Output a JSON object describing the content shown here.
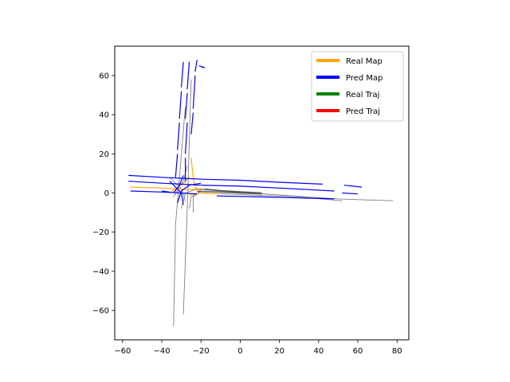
{
  "chart_data": {
    "type": "line",
    "title": "",
    "xlabel": "",
    "ylabel": "",
    "xlim": [
      -64,
      86
    ],
    "ylim": [
      -75,
      75
    ],
    "x_ticks": [
      -60,
      -40,
      -20,
      0,
      20,
      40,
      60,
      80
    ],
    "y_ticks": [
      -60,
      -40,
      -20,
      0,
      20,
      40,
      60
    ],
    "grid": false,
    "legend_position": "top-right",
    "legend": [
      {
        "label": "Real Map",
        "color": "#ffa500"
      },
      {
        "label": "Pred Map",
        "color": "#0000ff"
      },
      {
        "label": "Real Traj",
        "color": "#008000"
      },
      {
        "label": "Pred Traj",
        "color": "#ff0000"
      }
    ],
    "series": [
      {
        "kind": "gray",
        "color": "#808080",
        "points": [
          [
            -28,
            44
          ],
          [
            -33,
            -16
          ]
        ]
      },
      {
        "kind": "gray",
        "color": "#808080",
        "points": [
          [
            -33,
            -16
          ],
          [
            -34,
            -68
          ]
        ]
      },
      {
        "kind": "gray",
        "color": "#808080",
        "points": [
          [
            -25,
            58
          ],
          [
            -27,
            -8
          ]
        ]
      },
      {
        "kind": "gray",
        "color": "#808080",
        "points": [
          [
            -27,
            -8
          ],
          [
            -29,
            -62
          ]
        ]
      },
      {
        "kind": "gray",
        "color": "#808080",
        "points": [
          [
            -20,
            64
          ],
          [
            -18,
            64
          ]
        ]
      },
      {
        "kind": "gray",
        "color": "#808080",
        "points": [
          [
            -24,
            2
          ],
          [
            20,
            -1
          ],
          [
            50,
            -3
          ],
          [
            78,
            -4
          ]
        ]
      },
      {
        "kind": "gray",
        "color": "#808080",
        "points": [
          [
            -20,
            0
          ],
          [
            30,
            -2
          ],
          [
            52,
            -4
          ]
        ]
      },
      {
        "kind": "gray",
        "color": "#808080",
        "points": [
          [
            -36,
            8
          ],
          [
            -30,
            2
          ],
          [
            -28,
            -4
          ]
        ]
      },
      {
        "kind": "gray",
        "color": "#808080",
        "points": [
          [
            -34,
            -2
          ],
          [
            -29,
            6
          ],
          [
            -27,
            14
          ]
        ]
      },
      {
        "kind": "gray",
        "color": "#808080",
        "points": [
          [
            -30,
            -8
          ],
          [
            -28,
            0
          ],
          [
            -22,
            2
          ],
          [
            -18,
            2
          ]
        ]
      },
      {
        "kind": "gray",
        "color": "#808080",
        "points": [
          [
            -26,
            -8
          ],
          [
            -25,
            -2
          ],
          [
            -22,
            0
          ]
        ]
      },
      {
        "kind": "gray",
        "color": "#808080",
        "points": [
          [
            -24,
            -10
          ],
          [
            -24,
            -2
          ],
          [
            -20,
            1
          ]
        ]
      },
      {
        "kind": "real",
        "color": "#ffa500",
        "points": [
          [
            -56,
            3
          ],
          [
            -40,
            2.5
          ],
          [
            -30,
            2
          ],
          [
            -20,
            1.5
          ]
        ]
      },
      {
        "kind": "real",
        "color": "#ffa500",
        "points": [
          [
            -25,
            18
          ],
          [
            -24,
            8
          ],
          [
            -23,
            3
          ],
          [
            -20,
            1
          ]
        ]
      },
      {
        "kind": "real",
        "color": "#ffa500",
        "points": [
          [
            -36,
            0
          ],
          [
            -30,
            4
          ],
          [
            -26,
            8
          ]
        ]
      },
      {
        "kind": "real",
        "color": "#ffa500",
        "points": [
          [
            -26,
            -1
          ],
          [
            -20,
            0
          ],
          [
            -10,
            -0.5
          ]
        ]
      },
      {
        "kind": "pred",
        "color": "#0000ff",
        "points": [
          [
            -57,
            9
          ],
          [
            -40,
            8
          ],
          [
            -30,
            7.5
          ],
          [
            -18,
            7
          ]
        ]
      },
      {
        "kind": "pred",
        "color": "#0000ff",
        "points": [
          [
            -18,
            7
          ],
          [
            0,
            6.5
          ],
          [
            20,
            5.5
          ],
          [
            42,
            4.5
          ]
        ]
      },
      {
        "kind": "pred",
        "color": "#0000ff",
        "points": [
          [
            -57,
            6
          ],
          [
            -40,
            5
          ],
          [
            -30,
            4.5
          ],
          [
            -20,
            4
          ]
        ]
      },
      {
        "kind": "pred",
        "color": "#0000ff",
        "points": [
          [
            -20,
            4
          ],
          [
            0,
            3.5
          ],
          [
            20,
            2.5
          ],
          [
            48,
            1
          ]
        ]
      },
      {
        "kind": "pred",
        "color": "#0000ff",
        "points": [
          [
            -56,
            1
          ],
          [
            -40,
            0.5
          ],
          [
            -30,
            0
          ],
          [
            -22,
            -0.5
          ]
        ]
      },
      {
        "kind": "pred",
        "color": "#0000ff",
        "points": [
          [
            -12,
            -1.5
          ],
          [
            10,
            -2
          ],
          [
            30,
            -2.5
          ],
          [
            48,
            -3
          ]
        ]
      },
      {
        "kind": "pred",
        "color": "#0000ff",
        "points": [
          [
            -40,
            1
          ],
          [
            -36,
            0.5
          ]
        ]
      },
      {
        "kind": "pred",
        "color": "#0000ff",
        "points": [
          [
            -36,
            6
          ],
          [
            -33,
            3
          ],
          [
            -30,
            0
          ],
          [
            -29,
            -6
          ]
        ]
      },
      {
        "kind": "pred",
        "color": "#0000ff",
        "points": [
          [
            -34,
            0
          ],
          [
            -31,
            4
          ],
          [
            -29,
            9
          ]
        ]
      },
      {
        "kind": "pred",
        "color": "#0000ff",
        "points": [
          [
            -32,
            -5
          ],
          [
            -30,
            1
          ],
          [
            -26,
            4
          ],
          [
            -20,
            5
          ]
        ]
      },
      {
        "kind": "pred",
        "color": "#0000ff",
        "points": [
          [
            -29,
            67
          ],
          [
            -30,
            54
          ]
        ]
      },
      {
        "kind": "pred",
        "color": "#0000ff",
        "points": [
          [
            -30,
            52
          ],
          [
            -31,
            38
          ]
        ]
      },
      {
        "kind": "pred",
        "color": "#0000ff",
        "points": [
          [
            -31,
            36
          ],
          [
            -32,
            22
          ]
        ]
      },
      {
        "kind": "pred",
        "color": "#0000ff",
        "points": [
          [
            -32,
            20
          ],
          [
            -33,
            8
          ]
        ]
      },
      {
        "kind": "pred",
        "color": "#0000ff",
        "points": [
          [
            -26,
            67
          ],
          [
            -27,
            53
          ]
        ]
      },
      {
        "kind": "pred",
        "color": "#0000ff",
        "points": [
          [
            -27,
            51
          ],
          [
            -28,
            38
          ]
        ]
      },
      {
        "kind": "pred",
        "color": "#0000ff",
        "points": [
          [
            -27,
            36
          ],
          [
            -28,
            20
          ]
        ]
      },
      {
        "kind": "pred",
        "color": "#0000ff",
        "points": [
          [
            -28,
            18
          ],
          [
            -28,
            6
          ]
        ]
      },
      {
        "kind": "pred",
        "color": "#0000ff",
        "points": [
          [
            -22,
            68
          ],
          [
            -23,
            62
          ]
        ]
      },
      {
        "kind": "pred",
        "color": "#0000ff",
        "points": [
          [
            -23,
            60
          ],
          [
            -24,
            43
          ]
        ]
      },
      {
        "kind": "pred",
        "color": "#0000ff",
        "points": [
          [
            -24,
            41
          ],
          [
            -25,
            30
          ]
        ]
      },
      {
        "kind": "pred",
        "color": "#0000ff",
        "points": [
          [
            -21,
            65
          ],
          [
            -18,
            64
          ]
        ]
      },
      {
        "kind": "pred",
        "color": "#0000ff",
        "points": [
          [
            53,
            4
          ],
          [
            62,
            3
          ]
        ]
      },
      {
        "kind": "pred",
        "color": "#0000ff",
        "points": [
          [
            52,
            0
          ],
          [
            60,
            -0.5
          ]
        ]
      },
      {
        "kind": "traj",
        "color": "#555555",
        "points": [
          [
            -22,
            0.8
          ],
          [
            -10,
            0.5
          ],
          [
            0,
            0
          ],
          [
            11,
            -0.5
          ]
        ]
      },
      {
        "kind": "traj",
        "color": "#555555",
        "points": [
          [
            -18,
            2
          ],
          [
            -10,
            1.2
          ],
          [
            0,
            0.6
          ],
          [
            11,
            0
          ]
        ]
      }
    ]
  }
}
